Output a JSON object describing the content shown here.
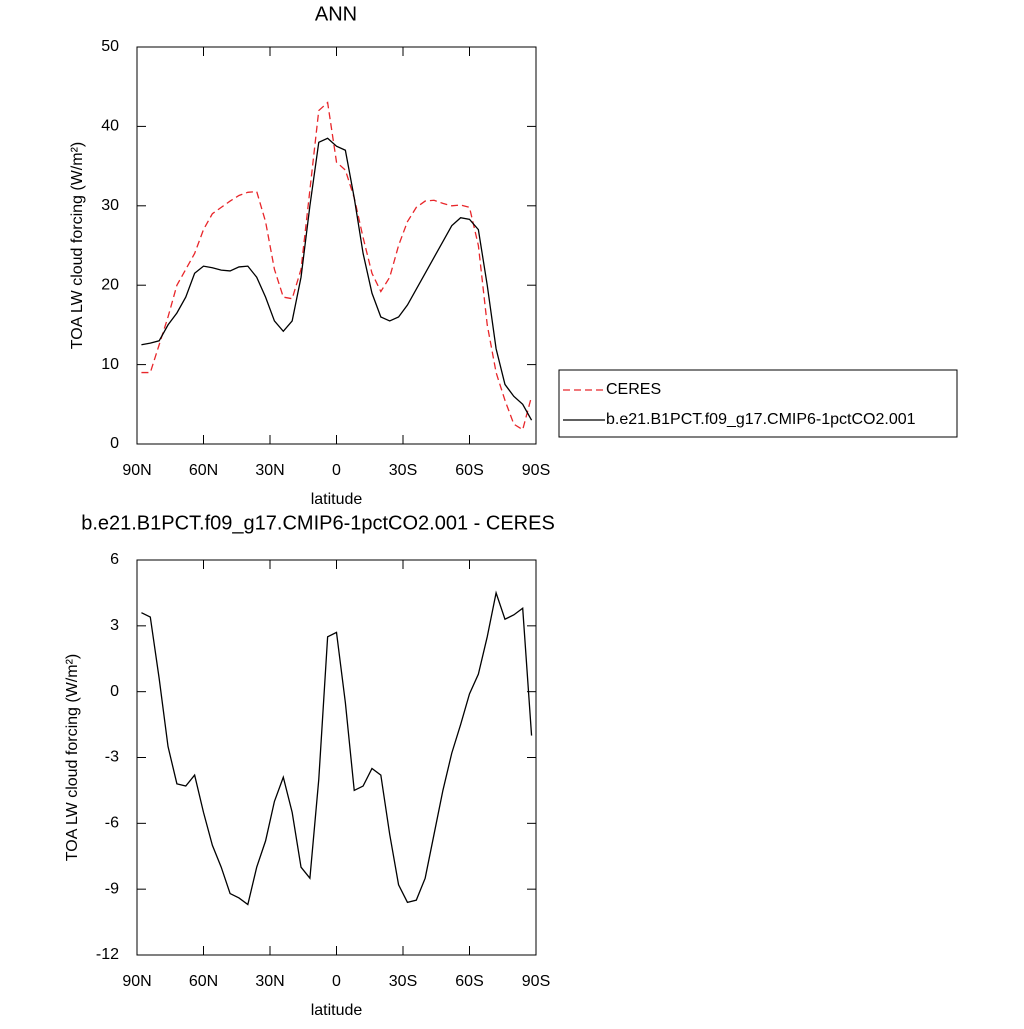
{
  "chart_data": [
    {
      "type": "line",
      "title": "ANN",
      "xlabel": "latitude",
      "ylabel": "TOA LW cloud forcing (W/m²)",
      "x": [
        88,
        84,
        80,
        76,
        72,
        68,
        64,
        60,
        56,
        52,
        48,
        44,
        40,
        36,
        32,
        28,
        24,
        20,
        16,
        12,
        8,
        4,
        0,
        -4,
        -8,
        -12,
        -16,
        -20,
        -24,
        -28,
        -32,
        -36,
        -40,
        -44,
        -48,
        -52,
        -56,
        -60,
        -64,
        -68,
        -72,
        -76,
        -80,
        -84,
        -88
      ],
      "series": [
        {
          "name": "CERES",
          "color": "#e8262a",
          "line_style": "dashed",
          "values": [
            9,
            9,
            12.5,
            16,
            20,
            22,
            24,
            27,
            29,
            29.8,
            30.6,
            31.3,
            31.7,
            31.8,
            28,
            22,
            18.5,
            18.3,
            22,
            32,
            42,
            43,
            35.5,
            34.5,
            31,
            26,
            21.5,
            19.2,
            21,
            25,
            28,
            29.8,
            30.6,
            30.7,
            30.3,
            30,
            30.1,
            29.8,
            25,
            15,
            9,
            5.5,
            2.5,
            1.8,
            6
          ]
        },
        {
          "name": "b.e21.B1PCT.f09_g17.CMIP6-1pctCO2.001",
          "color": "#000000",
          "line_style": "solid",
          "values": [
            12.5,
            12.7,
            13,
            15,
            16.5,
            18.5,
            21.5,
            22.4,
            22.2,
            21.9,
            21.8,
            22.3,
            22.4,
            21,
            18.5,
            15.5,
            14.2,
            15.5,
            21,
            30,
            38,
            38.5,
            37.5,
            37,
            31,
            24,
            19,
            16,
            15.5,
            16,
            17.5,
            19.5,
            21.5,
            23.5,
            25.5,
            27.5,
            28.5,
            28.3,
            27,
            20,
            12,
            7.5,
            6,
            5,
            3
          ]
        }
      ],
      "xlim": [
        90,
        -90
      ],
      "xticks": [
        {
          "value": 90,
          "label": "90N"
        },
        {
          "value": 60,
          "label": "60N"
        },
        {
          "value": 30,
          "label": "30N"
        },
        0,
        {
          "value": -30,
          "label": "30S"
        },
        {
          "value": -60,
          "label": "60S"
        },
        {
          "value": -90,
          "label": "90S"
        }
      ],
      "ylim": [
        0,
        50
      ],
      "yticks": [
        0,
        10,
        20,
        30,
        40,
        50
      ],
      "legend": "right"
    },
    {
      "type": "line",
      "title": "b.e21.B1PCT.f09_g17.CMIP6-1pctCO2.001 - CERES",
      "xlabel": "latitude",
      "ylabel": "TOA LW cloud forcing (W/m²)",
      "x": [
        88,
        84,
        80,
        76,
        72,
        68,
        64,
        60,
        56,
        52,
        48,
        44,
        40,
        36,
        32,
        28,
        24,
        20,
        16,
        12,
        8,
        4,
        0,
        -4,
        -8,
        -12,
        -16,
        -20,
        -24,
        -28,
        -32,
        -36,
        -40,
        -44,
        -48,
        -52,
        -56,
        -60,
        -64,
        -68,
        -72,
        -76,
        -80,
        -84,
        -88
      ],
      "series": [
        {
          "color": "#000000",
          "line_style": "solid",
          "values": [
            3.6,
            3.4,
            0.6,
            -2.5,
            -4.2,
            -4.3,
            -3.8,
            -5.5,
            -7,
            -8,
            -9.2,
            -9.4,
            -9.7,
            -8,
            -6.8,
            -5,
            -3.9,
            -5.5,
            -8,
            -8.5,
            -4,
            2.5,
            2.7,
            -0.5,
            -4.5,
            -4.3,
            -3.5,
            -3.8,
            -6.5,
            -8.8,
            -9.6,
            -9.5,
            -8.5,
            -6.5,
            -4.5,
            -2.8,
            -1.5,
            -0.1,
            0.8,
            2.5,
            4.5,
            3.3,
            3.5,
            3.8,
            -2
          ]
        }
      ],
      "xlim": [
        90,
        -90
      ],
      "xticks": [
        {
          "value": 90,
          "label": "90N"
        },
        {
          "value": 60,
          "label": "60N"
        },
        {
          "value": 30,
          "label": "30N"
        },
        0,
        {
          "value": -30,
          "label": "30S"
        },
        {
          "value": -60,
          "label": "60S"
        },
        {
          "value": -90,
          "label": "90S"
        }
      ],
      "ylim": [
        -12,
        6
      ],
      "yticks": [
        -12,
        -9,
        -6,
        -3,
        0,
        3,
        6
      ]
    }
  ]
}
